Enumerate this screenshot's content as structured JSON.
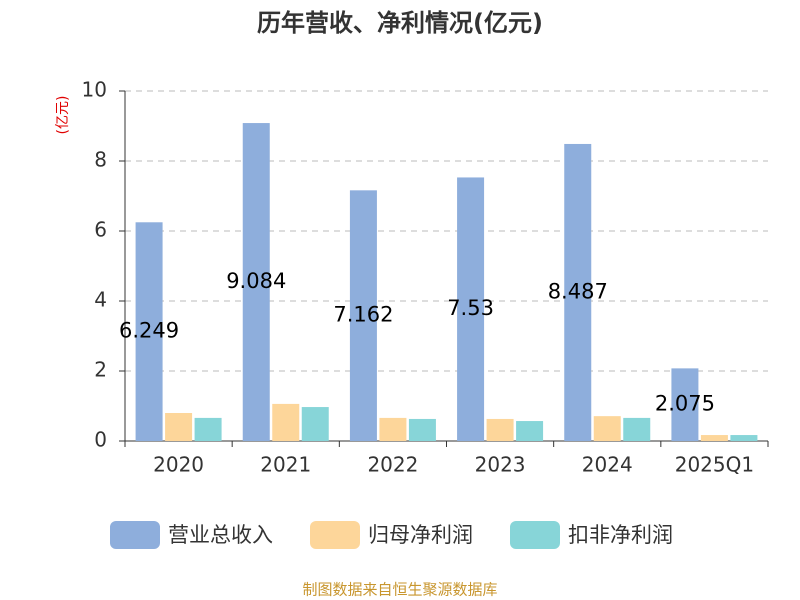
{
  "chart_data": {
    "type": "bar",
    "title": "历年营收、净利情况(亿元)",
    "y_label": "(亿元)",
    "categories": [
      "2020",
      "2021",
      "2022",
      "2023",
      "2024",
      "2025Q1"
    ],
    "series": [
      {
        "name": "营业总收入",
        "color": "#8eaedc",
        "values": [
          6.249,
          9.084,
          7.162,
          7.53,
          8.487,
          2.075
        ],
        "show_labels": true
      },
      {
        "name": "归母净利润",
        "color": "#fdd69a",
        "values": [
          0.8,
          1.06,
          0.66,
          0.63,
          0.71,
          0.17
        ]
      },
      {
        "name": "扣非净利润",
        "color": "#87d5d8",
        "values": [
          0.66,
          0.97,
          0.63,
          0.57,
          0.66,
          0.17
        ]
      }
    ],
    "ylim": [
      0,
      10
    ],
    "yticks": [
      0,
      2,
      4,
      6,
      8,
      10
    ],
    "grid": true,
    "source": "制图数据来自恒生聚源数据库"
  }
}
